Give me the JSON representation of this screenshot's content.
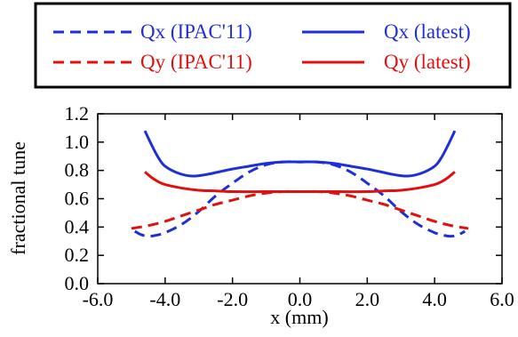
{
  "chart_data": {
    "type": "line",
    "xlabel": "x (mm)",
    "ylabel": "fractional tune",
    "xlim": [
      -6.0,
      6.0
    ],
    "ylim": [
      0.0,
      1.2
    ],
    "xticks": [
      -6.0,
      -4.0,
      -2.0,
      0.0,
      2.0,
      4.0,
      6.0
    ],
    "yticks": [
      0.0,
      0.2,
      0.4,
      0.6,
      0.8,
      1.0,
      1.2
    ],
    "xtick_labels": [
      "-6.0",
      "-4.0",
      "-2.0",
      "0.0",
      "2.0",
      "4.0",
      "6.0"
    ],
    "ytick_labels": [
      "0.0",
      "0.2",
      "0.4",
      "0.6",
      "0.8",
      "1.0",
      "1.2"
    ],
    "grid": false,
    "legend_position": "top",
    "series": [
      {
        "name": "Qx (IPAC'11)",
        "color": "#1f2fd6",
        "style": "dashed",
        "x": [
          -4.9,
          -4.7,
          -4.5,
          -4.3,
          -4.0,
          -3.5,
          -3.0,
          -2.5,
          -2.0,
          -1.5,
          -1.0,
          -0.5,
          0.0,
          0.5,
          1.0,
          1.5,
          2.0,
          2.5,
          3.0,
          3.5,
          4.0,
          4.3,
          4.5,
          4.7,
          4.9
        ],
        "y": [
          0.37,
          0.345,
          0.335,
          0.34,
          0.36,
          0.42,
          0.51,
          0.62,
          0.71,
          0.79,
          0.84,
          0.86,
          0.86,
          0.86,
          0.84,
          0.79,
          0.71,
          0.62,
          0.51,
          0.42,
          0.36,
          0.34,
          0.335,
          0.345,
          0.37
        ]
      },
      {
        "name": "Qx (latest)",
        "color": "#1f2fd6",
        "style": "solid",
        "x": [
          -4.6,
          -4.4,
          -4.2,
          -4.0,
          -3.6,
          -3.2,
          -2.8,
          -2.4,
          -2.0,
          -1.5,
          -1.0,
          -0.5,
          0.0,
          0.5,
          1.0,
          1.5,
          2.0,
          2.4,
          2.8,
          3.2,
          3.6,
          4.0,
          4.2,
          4.4,
          4.6
        ],
        "y": [
          1.08,
          0.98,
          0.89,
          0.83,
          0.78,
          0.76,
          0.77,
          0.79,
          0.81,
          0.83,
          0.85,
          0.86,
          0.86,
          0.86,
          0.85,
          0.83,
          0.81,
          0.79,
          0.77,
          0.76,
          0.78,
          0.83,
          0.89,
          0.98,
          1.08
        ]
      },
      {
        "name": "Qy (IPAC'11)",
        "color": "#e01010",
        "style": "dashed",
        "x": [
          -5.0,
          -4.5,
          -4.0,
          -3.5,
          -3.0,
          -2.5,
          -2.0,
          -1.5,
          -1.0,
          -0.5,
          0.0,
          0.5,
          1.0,
          1.5,
          2.0,
          2.5,
          3.0,
          3.5,
          4.0,
          4.5,
          5.0
        ],
        "y": [
          0.39,
          0.41,
          0.44,
          0.48,
          0.52,
          0.56,
          0.59,
          0.62,
          0.64,
          0.65,
          0.65,
          0.65,
          0.64,
          0.62,
          0.59,
          0.56,
          0.52,
          0.48,
          0.44,
          0.41,
          0.39
        ]
      },
      {
        "name": "Qy (latest)",
        "color": "#e01010",
        "style": "solid",
        "x": [
          -4.6,
          -4.4,
          -4.2,
          -4.0,
          -3.5,
          -3.0,
          -2.5,
          -2.0,
          -1.0,
          0.0,
          1.0,
          2.0,
          2.5,
          3.0,
          3.5,
          4.0,
          4.2,
          4.4,
          4.6
        ],
        "y": [
          0.79,
          0.75,
          0.72,
          0.7,
          0.675,
          0.66,
          0.655,
          0.65,
          0.65,
          0.65,
          0.65,
          0.65,
          0.655,
          0.66,
          0.675,
          0.7,
          0.72,
          0.75,
          0.79
        ]
      }
    ]
  }
}
